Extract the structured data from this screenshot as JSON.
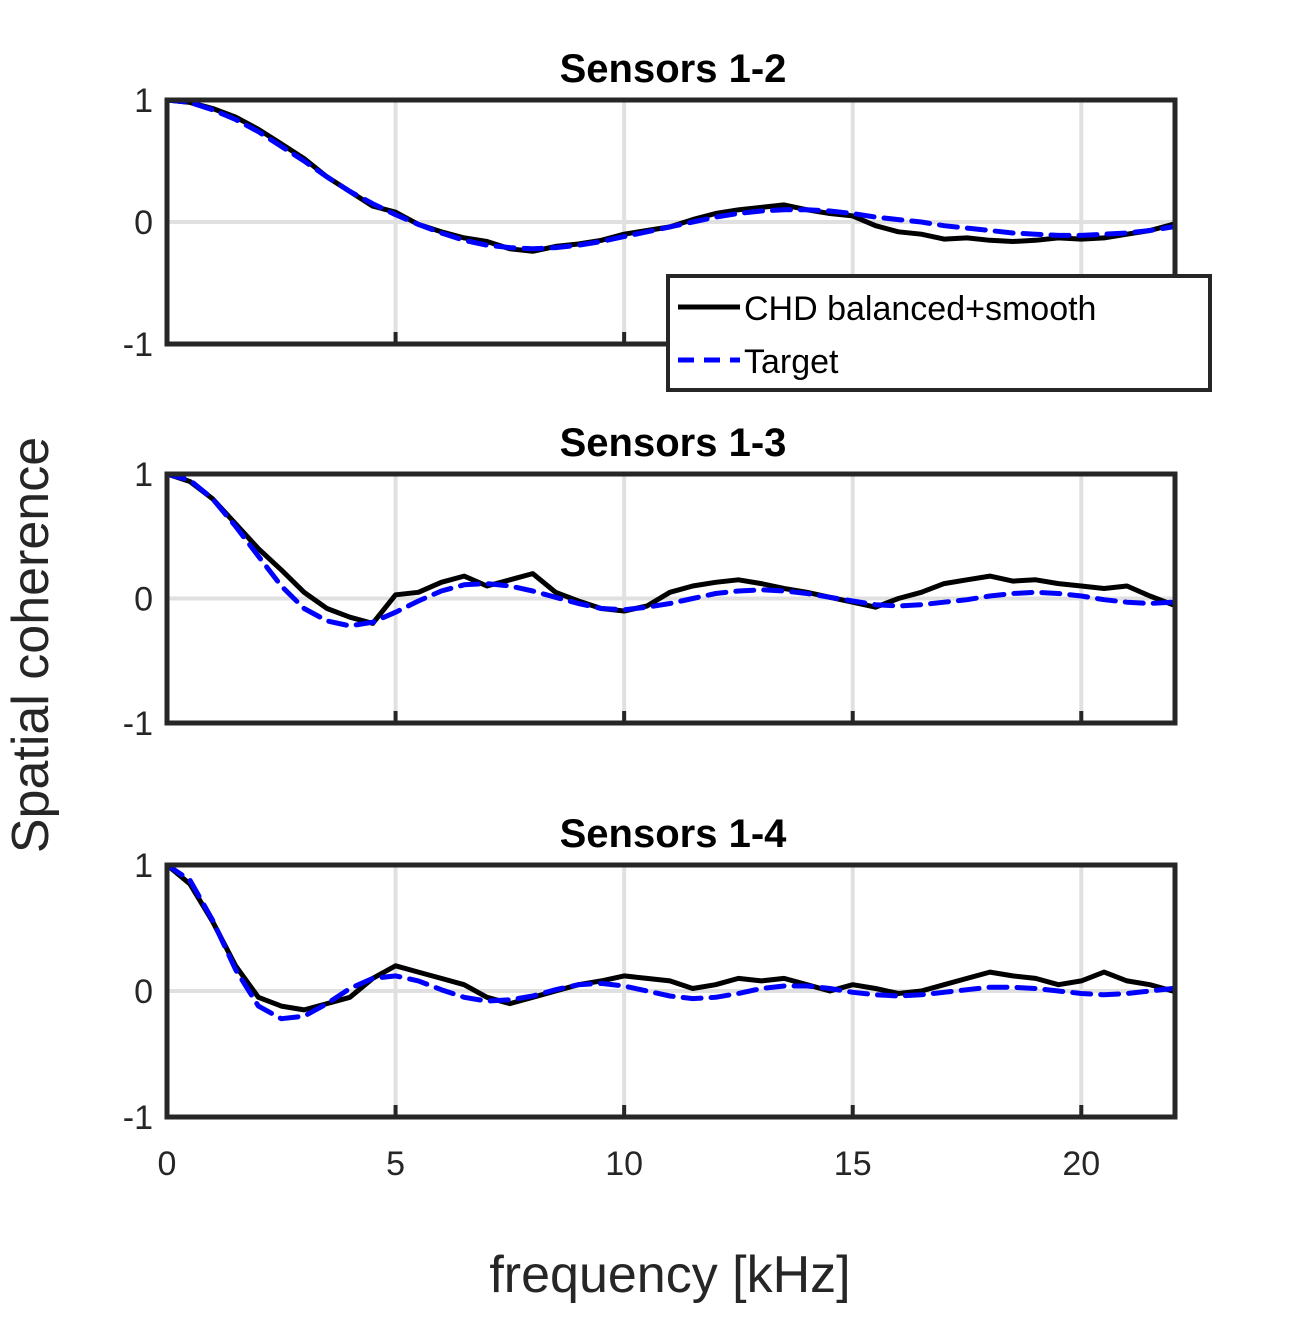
{
  "figure": {
    "xlabel": "frequency [kHz]",
    "ylabel": "Spatial coherence",
    "colors": {
      "measured": "#000000",
      "target": "#0000ff",
      "grid": "#e0e0e0",
      "axes": "#262626"
    }
  },
  "legend": {
    "entries": [
      {
        "label": "CHD balanced+smooth",
        "style": "solid",
        "color": "#000000"
      },
      {
        "label": "Target",
        "style": "dashed",
        "color": "#0000ff"
      }
    ],
    "placement": "lower-right of top subplot"
  },
  "chart_data": [
    {
      "type": "line",
      "title": "Sensors 1-2",
      "xlim": [
        0,
        22.05
      ],
      "ylim": [
        -1,
        1
      ],
      "xticks": [
        0,
        5,
        10,
        15,
        20
      ],
      "yticks": [
        -1,
        0,
        1
      ],
      "ytick_labels": [
        "-1",
        "0",
        "1"
      ],
      "grid": true,
      "series": [
        {
          "name": "CHD balanced+smooth",
          "x": [
            0,
            0.5,
            1,
            1.5,
            2,
            2.5,
            3,
            3.5,
            4,
            4.5,
            5,
            5.5,
            6,
            6.5,
            7,
            7.5,
            8,
            8.5,
            9,
            9.5,
            10,
            10.5,
            11,
            11.5,
            12,
            12.5,
            13,
            13.5,
            14,
            14.5,
            15,
            15.5,
            16,
            16.5,
            17,
            17.5,
            18,
            18.5,
            19,
            19.5,
            20,
            20.5,
            21,
            21.5,
            22
          ],
          "y": [
            1.0,
            0.98,
            0.93,
            0.86,
            0.76,
            0.64,
            0.52,
            0.37,
            0.25,
            0.13,
            0.08,
            -0.02,
            -0.08,
            -0.13,
            -0.16,
            -0.22,
            -0.24,
            -0.2,
            -0.18,
            -0.15,
            -0.1,
            -0.07,
            -0.04,
            0.02,
            0.07,
            0.1,
            0.12,
            0.14,
            0.1,
            0.07,
            0.05,
            -0.03,
            -0.08,
            -0.1,
            -0.14,
            -0.13,
            -0.15,
            -0.16,
            -0.15,
            -0.13,
            -0.14,
            -0.13,
            -0.1,
            -0.07,
            -0.02
          ]
        },
        {
          "name": "Target",
          "x": [
            0,
            0.5,
            1,
            1.5,
            2,
            2.5,
            3,
            3.5,
            4,
            4.5,
            5,
            5.5,
            6,
            6.5,
            7,
            7.5,
            8,
            8.5,
            9,
            9.5,
            10,
            10.5,
            11,
            11.5,
            12,
            12.5,
            13,
            13.5,
            14,
            14.5,
            15,
            15.5,
            16,
            16.5,
            17,
            17.5,
            18,
            18.5,
            19,
            19.5,
            20,
            20.5,
            21,
            21.5,
            22
          ],
          "y": [
            1.0,
            0.98,
            0.92,
            0.84,
            0.74,
            0.62,
            0.5,
            0.37,
            0.25,
            0.15,
            0.06,
            -0.02,
            -0.09,
            -0.15,
            -0.19,
            -0.21,
            -0.22,
            -0.21,
            -0.19,
            -0.16,
            -0.12,
            -0.08,
            -0.04,
            0.0,
            0.04,
            0.07,
            0.09,
            0.1,
            0.1,
            0.09,
            0.07,
            0.04,
            0.02,
            0.0,
            -0.03,
            -0.05,
            -0.07,
            -0.09,
            -0.1,
            -0.11,
            -0.11,
            -0.1,
            -0.09,
            -0.07,
            -0.04
          ]
        }
      ]
    },
    {
      "type": "line",
      "title": "Sensors 1-3",
      "xlim": [
        0,
        22.05
      ],
      "ylim": [
        -1,
        1
      ],
      "xticks": [
        0,
        5,
        10,
        15,
        20
      ],
      "yticks": [
        -1,
        0,
        1
      ],
      "ytick_labels": [
        "-1",
        "0",
        "1"
      ],
      "grid": true,
      "series": [
        {
          "name": "CHD balanced+smooth",
          "x": [
            0,
            0.5,
            1,
            1.5,
            2,
            2.5,
            3,
            3.5,
            4,
            4.5,
            5,
            5.5,
            6,
            6.5,
            7,
            7.5,
            8,
            8.5,
            9,
            9.5,
            10,
            10.5,
            11,
            11.5,
            12,
            12.5,
            13,
            13.5,
            14,
            14.5,
            15,
            15.5,
            16,
            16.5,
            17,
            17.5,
            18,
            18.5,
            19,
            19.5,
            20,
            20.5,
            21,
            21.5,
            22
          ],
          "y": [
            1.0,
            0.94,
            0.8,
            0.6,
            0.4,
            0.23,
            0.05,
            -0.08,
            -0.15,
            -0.2,
            0.03,
            0.05,
            0.13,
            0.18,
            0.1,
            0.15,
            0.2,
            0.05,
            -0.02,
            -0.08,
            -0.1,
            -0.06,
            0.05,
            0.1,
            0.13,
            0.15,
            0.12,
            0.08,
            0.05,
            0.01,
            -0.03,
            -0.07,
            0.0,
            0.05,
            0.12,
            0.15,
            0.18,
            0.14,
            0.15,
            0.12,
            0.1,
            0.08,
            0.1,
            0.02,
            -0.05
          ]
        },
        {
          "name": "Target",
          "x": [
            0,
            0.5,
            1,
            1.5,
            2,
            2.5,
            3,
            3.5,
            4,
            4.5,
            5,
            5.5,
            6,
            6.5,
            7,
            7.5,
            8,
            8.5,
            9,
            9.5,
            10,
            10.5,
            11,
            11.5,
            12,
            12.5,
            13,
            13.5,
            14,
            14.5,
            15,
            15.5,
            16,
            16.5,
            17,
            17.5,
            18,
            18.5,
            19,
            19.5,
            20,
            20.5,
            21,
            21.5,
            22
          ],
          "y": [
            1.0,
            0.95,
            0.8,
            0.58,
            0.34,
            0.1,
            -0.08,
            -0.18,
            -0.22,
            -0.19,
            -0.11,
            -0.02,
            0.06,
            0.11,
            0.12,
            0.1,
            0.06,
            0.01,
            -0.04,
            -0.08,
            -0.09,
            -0.07,
            -0.04,
            0.0,
            0.04,
            0.06,
            0.07,
            0.06,
            0.04,
            0.01,
            -0.02,
            -0.05,
            -0.06,
            -0.05,
            -0.03,
            -0.01,
            0.02,
            0.04,
            0.05,
            0.04,
            0.02,
            -0.01,
            -0.03,
            -0.04,
            -0.03
          ]
        }
      ]
    },
    {
      "type": "line",
      "title": "Sensors 1-4",
      "xlim": [
        0,
        22.05
      ],
      "ylim": [
        -1,
        1
      ],
      "xticks": [
        0,
        5,
        10,
        15,
        20
      ],
      "xtick_labels": [
        "0",
        "5",
        "10",
        "15",
        "20"
      ],
      "yticks": [
        -1,
        0,
        1
      ],
      "ytick_labels": [
        "-1",
        "0",
        "1"
      ],
      "grid": true,
      "series": [
        {
          "name": "CHD balanced+smooth",
          "x": [
            0,
            0.5,
            1,
            1.5,
            2,
            2.5,
            3,
            3.5,
            4,
            4.5,
            5,
            5.5,
            6,
            6.5,
            7,
            7.5,
            8,
            8.5,
            9,
            9.5,
            10,
            10.5,
            11,
            11.5,
            12,
            12.5,
            13,
            13.5,
            14,
            14.5,
            15,
            15.5,
            16,
            16.5,
            17,
            17.5,
            18,
            18.5,
            19,
            19.5,
            20,
            20.5,
            21,
            21.5,
            22
          ],
          "y": [
            1.0,
            0.85,
            0.55,
            0.2,
            -0.05,
            -0.12,
            -0.15,
            -0.1,
            -0.05,
            0.1,
            0.2,
            0.15,
            0.1,
            0.05,
            -0.05,
            -0.1,
            -0.05,
            0.0,
            0.05,
            0.08,
            0.12,
            0.1,
            0.08,
            0.02,
            0.05,
            0.1,
            0.08,
            0.1,
            0.05,
            0.0,
            0.05,
            0.02,
            -0.02,
            0.0,
            0.05,
            0.1,
            0.15,
            0.12,
            0.1,
            0.05,
            0.08,
            0.15,
            0.08,
            0.05,
            0.0
          ]
        },
        {
          "name": "Target",
          "x": [
            0,
            0.5,
            1,
            1.5,
            2,
            2.5,
            3,
            3.5,
            4,
            4.5,
            5,
            5.5,
            6,
            6.5,
            7,
            7.5,
            8,
            8.5,
            9,
            9.5,
            10,
            10.5,
            11,
            11.5,
            12,
            12.5,
            13,
            13.5,
            14,
            14.5,
            15,
            15.5,
            16,
            16.5,
            17,
            17.5,
            18,
            18.5,
            19,
            19.5,
            20,
            20.5,
            21,
            21.5,
            22
          ],
          "y": [
            1.0,
            0.88,
            0.56,
            0.17,
            -0.12,
            -0.22,
            -0.2,
            -0.1,
            0.02,
            0.1,
            0.12,
            0.08,
            0.01,
            -0.05,
            -0.08,
            -0.07,
            -0.04,
            0.01,
            0.05,
            0.06,
            0.04,
            0.0,
            -0.04,
            -0.06,
            -0.05,
            -0.02,
            0.02,
            0.04,
            0.04,
            0.02,
            -0.01,
            -0.03,
            -0.04,
            -0.03,
            -0.01,
            0.01,
            0.03,
            0.03,
            0.02,
            0.0,
            -0.02,
            -0.03,
            -0.02,
            0.0,
            0.02
          ]
        }
      ]
    }
  ]
}
